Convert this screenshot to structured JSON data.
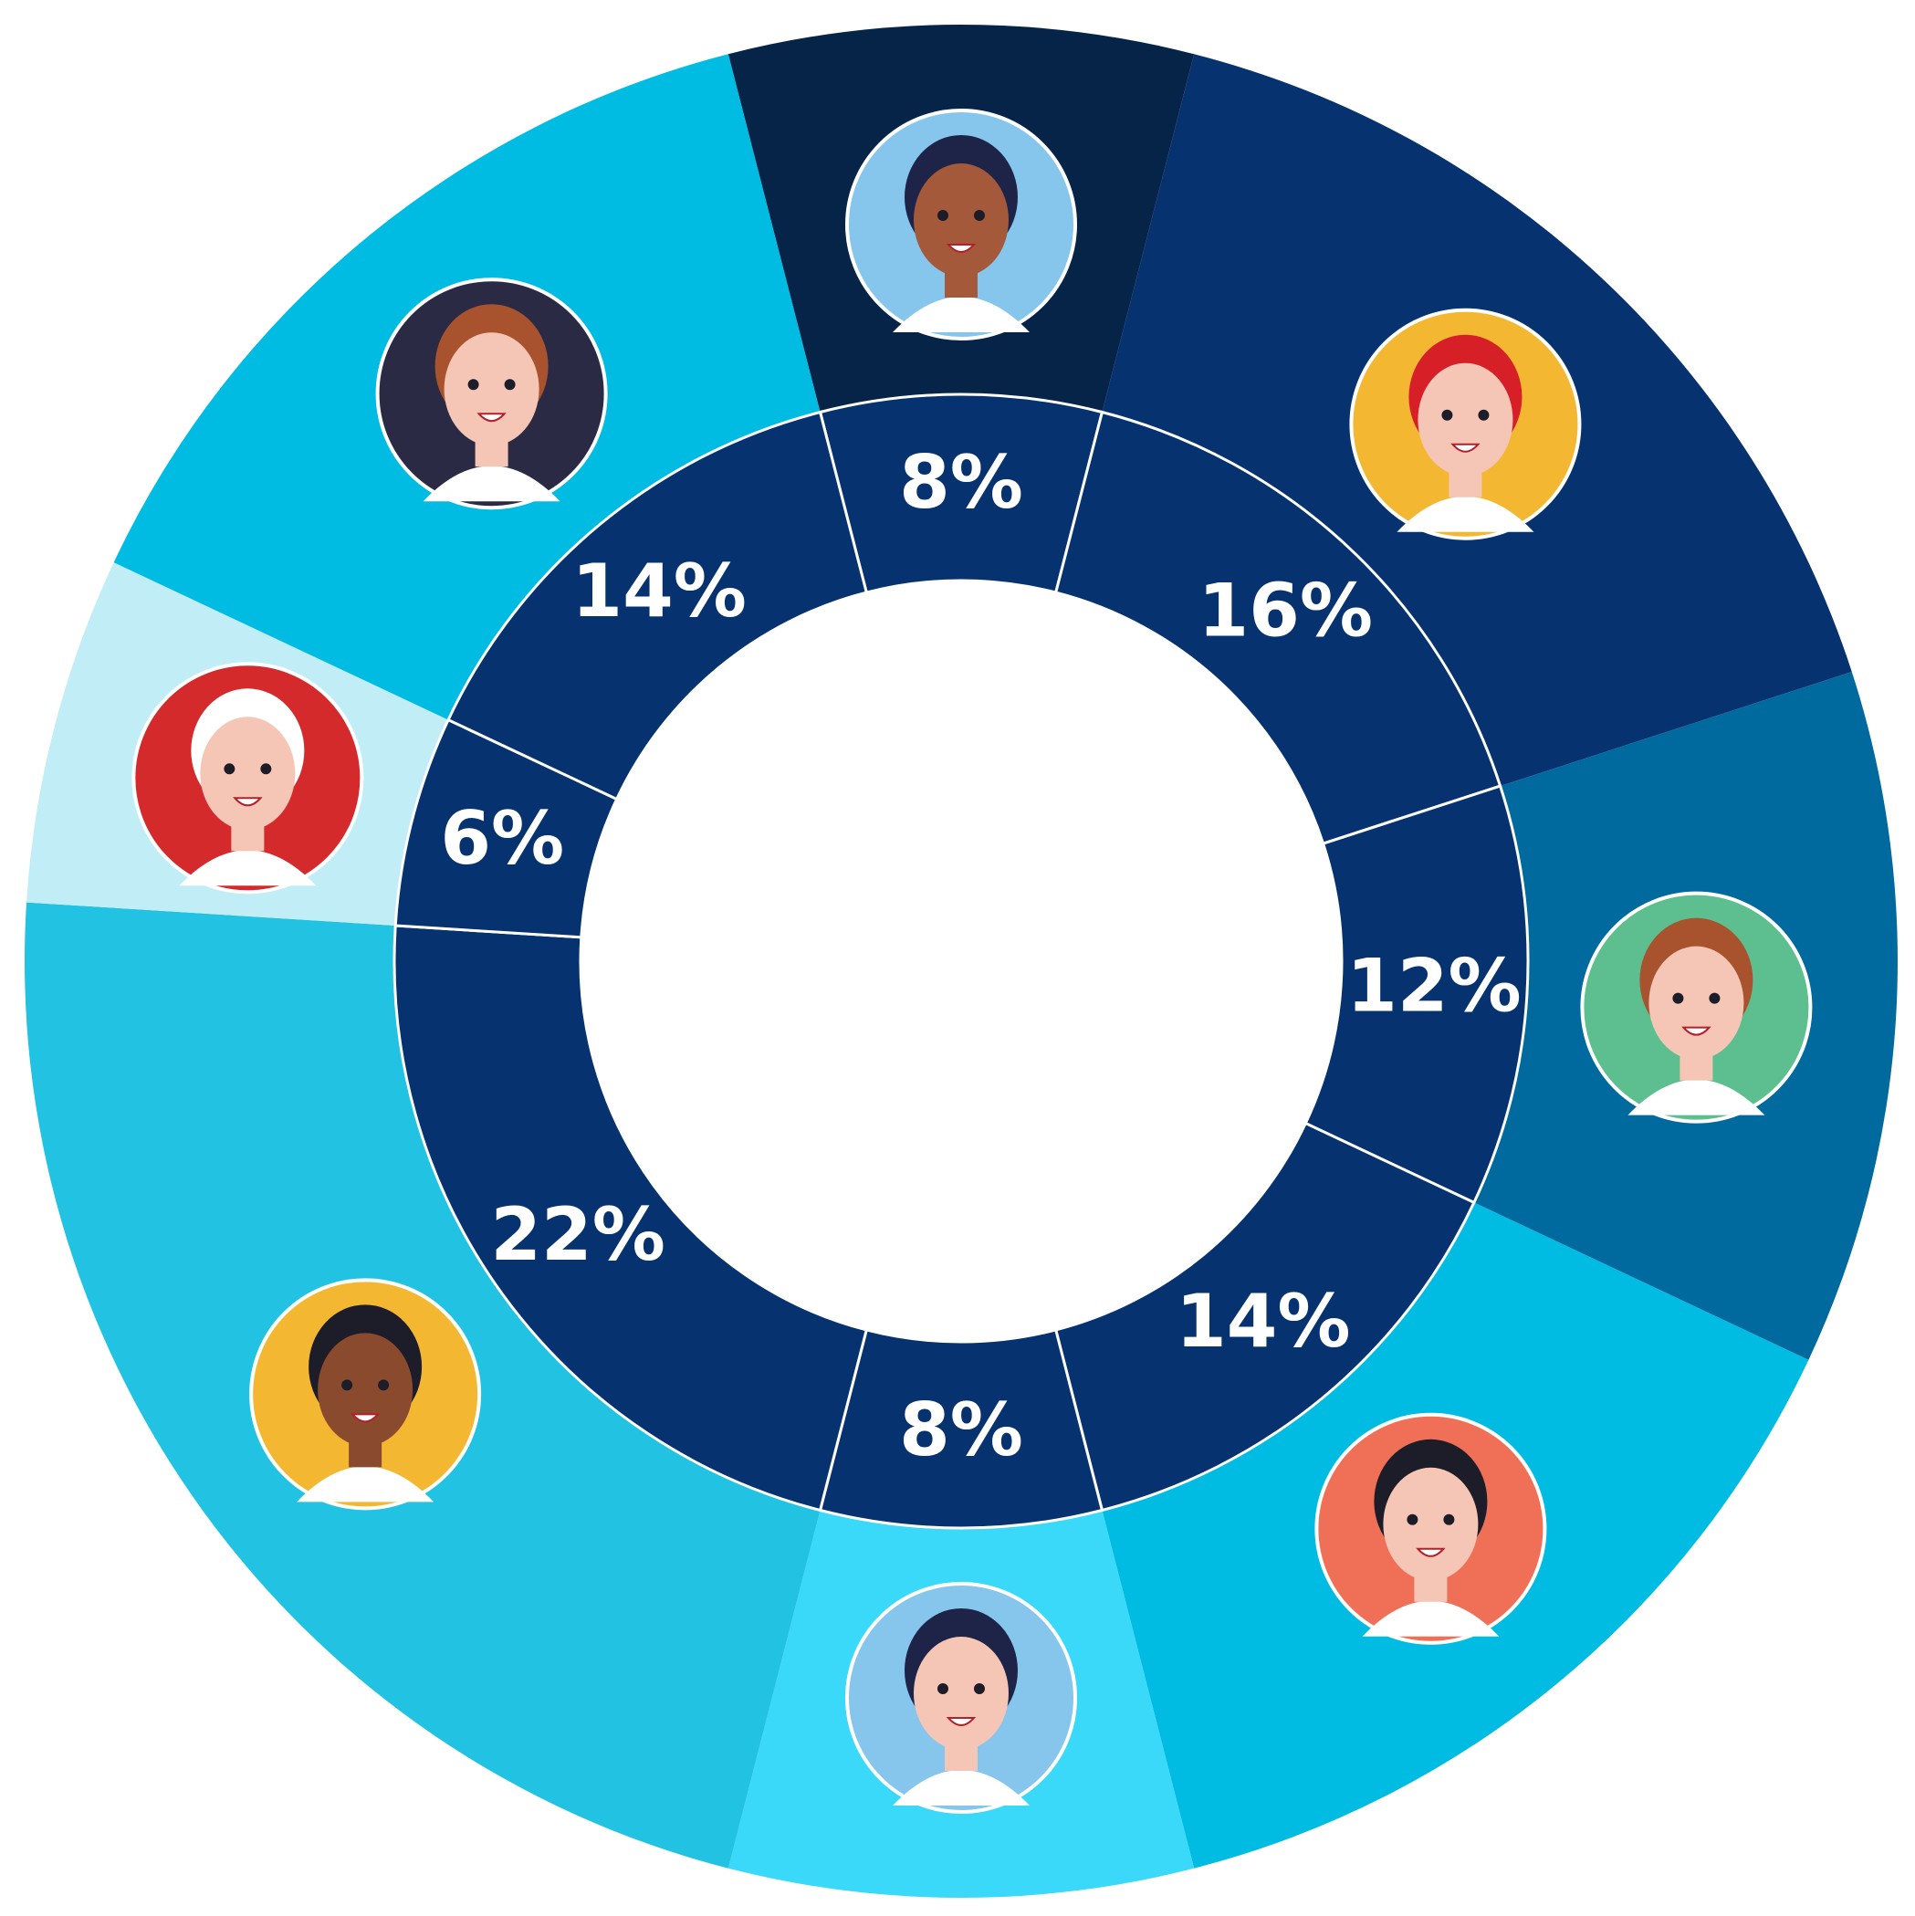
{
  "chart_data": {
    "type": "pie",
    "categories": [
      null,
      null,
      null,
      null,
      null,
      null,
      null,
      null
    ],
    "values": [
      8,
      16,
      12,
      14,
      8,
      22,
      6,
      14
    ],
    "value_labels": [
      "8%",
      "16%",
      "12%",
      "14%",
      "8%",
      "22%",
      "6%",
      "14%"
    ],
    "colors": [
      "#062448",
      "#063270",
      "#006a9e",
      "#00bce3",
      "#3ad8f9",
      "#22c2e3",
      "#c1edf6",
      "#00bbe2"
    ],
    "inner_color": "#063270"
  }
}
